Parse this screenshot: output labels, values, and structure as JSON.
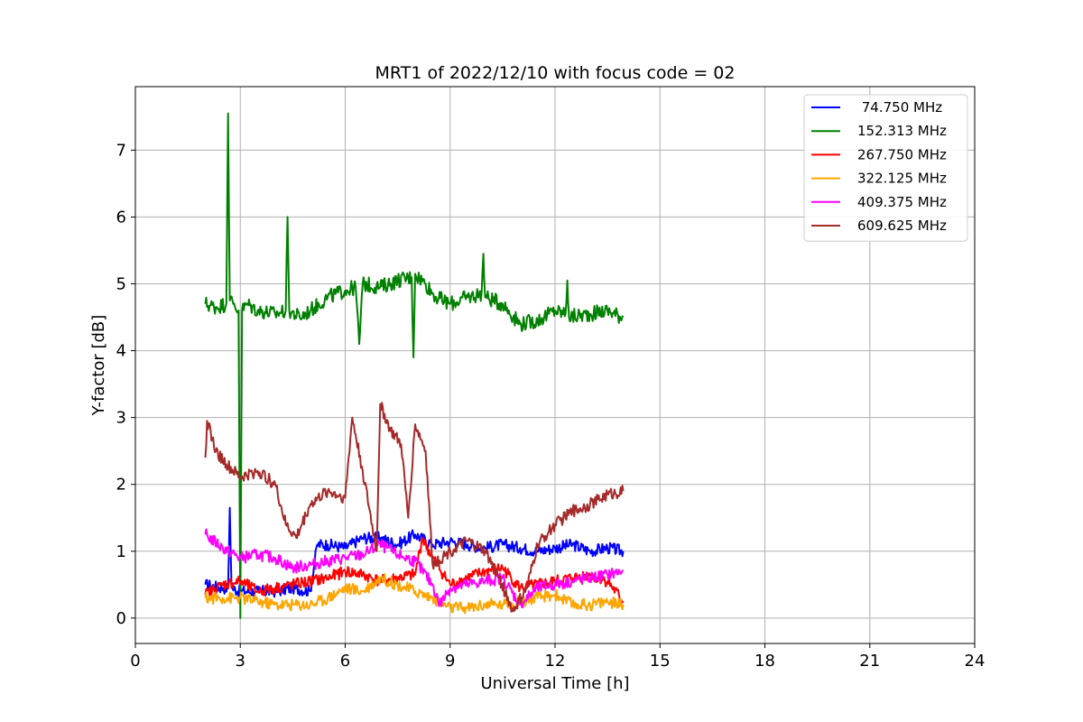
{
  "chart_data": {
    "type": "line",
    "title": "MRT1 of 2022/12/10 with focus code = 02",
    "xlabel": "Universal Time [h]",
    "ylabel": "Y-factor [dB]",
    "xlim": [
      0,
      24
    ],
    "ylim": [
      -0.38,
      7.95
    ],
    "xticks": [
      0,
      3,
      6,
      9,
      12,
      15,
      18,
      21,
      24
    ],
    "yticks": [
      0,
      1,
      2,
      3,
      4,
      5,
      6,
      7
    ],
    "grid": true,
    "legend_position": "top-right",
    "series": [
      {
        "name": "74.750 MHz",
        "legend_label": " 74.750 MHz",
        "color": "#0000ff",
        "x": [
          2.0,
          2.5,
          2.65,
          2.7,
          2.75,
          3.0,
          3.5,
          4.0,
          4.5,
          5.0,
          5.2,
          5.5,
          6.0,
          6.5,
          7.0,
          7.5,
          8.0,
          8.5,
          9.0,
          9.5,
          10.0,
          10.5,
          11.0,
          11.5,
          12.0,
          12.5,
          13.0,
          13.5,
          13.95
        ],
        "y": [
          0.5,
          0.45,
          0.45,
          1.65,
          0.45,
          0.4,
          0.4,
          0.4,
          0.45,
          0.4,
          1.1,
          1.1,
          1.05,
          1.2,
          1.2,
          1.1,
          1.25,
          1.1,
          1.15,
          1.1,
          1.05,
          1.1,
          1.05,
          1.0,
          1.05,
          1.1,
          1.0,
          1.05,
          1.0
        ]
      },
      {
        "name": "152.313 MHz",
        "color": "#008000",
        "x": [
          2.0,
          2.3,
          2.6,
          2.65,
          2.7,
          2.8,
          2.95,
          3.0,
          3.05,
          3.2,
          3.5,
          4.0,
          4.3,
          4.35,
          4.4,
          4.7,
          5.0,
          5.5,
          6.0,
          6.3,
          6.4,
          6.5,
          7.0,
          7.5,
          7.9,
          7.95,
          8.0,
          8.3,
          8.6,
          9.0,
          9.5,
          9.9,
          9.95,
          10.0,
          10.5,
          11.0,
          11.5,
          12.0,
          12.3,
          12.35,
          12.4,
          13.0,
          13.5,
          13.95
        ],
        "y": [
          4.7,
          4.65,
          4.7,
          7.55,
          4.75,
          4.7,
          4.6,
          0.0,
          4.6,
          4.7,
          4.6,
          4.55,
          4.6,
          6.0,
          4.6,
          4.5,
          4.6,
          4.8,
          4.9,
          4.95,
          4.1,
          5.0,
          4.95,
          5.05,
          5.1,
          3.9,
          5.15,
          5.0,
          4.8,
          4.7,
          4.8,
          4.85,
          5.45,
          4.8,
          4.7,
          4.4,
          4.45,
          4.6,
          4.55,
          5.05,
          4.5,
          4.55,
          4.6,
          4.5
        ]
      },
      {
        "name": "267.750 MHz",
        "color": "#ff0000",
        "x": [
          2.0,
          2.5,
          3.0,
          3.5,
          4.0,
          4.5,
          5.0,
          5.5,
          6.0,
          6.5,
          7.0,
          7.5,
          8.0,
          8.2,
          8.5,
          9.0,
          9.5,
          10.0,
          10.5,
          11.0,
          11.5,
          12.0,
          12.5,
          13.0,
          13.5,
          13.95
        ],
        "y": [
          0.35,
          0.5,
          0.55,
          0.4,
          0.45,
          0.5,
          0.55,
          0.6,
          0.7,
          0.65,
          0.55,
          0.6,
          0.65,
          1.2,
          0.9,
          0.5,
          0.6,
          0.7,
          0.75,
          0.45,
          0.5,
          0.55,
          0.6,
          0.65,
          0.55,
          0.25
        ]
      },
      {
        "name": "322.125 MHz",
        "color": "#ffa500",
        "x": [
          2.0,
          2.5,
          3.0,
          3.5,
          4.0,
          4.5,
          5.0,
          5.5,
          6.0,
          6.5,
          7.0,
          7.5,
          8.0,
          8.5,
          9.0,
          9.5,
          10.0,
          10.5,
          11.0,
          11.5,
          12.0,
          12.5,
          13.0,
          13.5,
          13.95
        ],
        "y": [
          0.3,
          0.3,
          0.3,
          0.25,
          0.2,
          0.2,
          0.2,
          0.3,
          0.45,
          0.4,
          0.6,
          0.5,
          0.4,
          0.3,
          0.15,
          0.15,
          0.2,
          0.2,
          0.25,
          0.3,
          0.35,
          0.2,
          0.2,
          0.25,
          0.2
        ]
      },
      {
        "name": "409.375 MHz",
        "color": "#ff00ff",
        "x": [
          2.0,
          2.5,
          3.0,
          3.5,
          4.0,
          4.5,
          5.0,
          5.5,
          6.0,
          6.5,
          7.0,
          7.5,
          8.0,
          8.5,
          8.7,
          9.0,
          9.5,
          10.0,
          10.5,
          11.0,
          11.5,
          12.0,
          12.5,
          13.0,
          13.5,
          13.95
        ],
        "y": [
          1.25,
          1.05,
          0.9,
          0.95,
          0.9,
          0.75,
          0.8,
          0.85,
          0.9,
          0.95,
          1.1,
          0.95,
          0.85,
          0.5,
          0.2,
          0.45,
          0.5,
          0.55,
          0.6,
          0.2,
          0.45,
          0.5,
          0.55,
          0.6,
          0.65,
          0.7
        ]
      },
      {
        "name": "609.625 MHz",
        "color": "#a52a2a",
        "x": [
          2.0,
          2.05,
          2.3,
          2.6,
          3.0,
          3.5,
          4.0,
          4.3,
          4.6,
          5.0,
          5.5,
          6.0,
          6.2,
          6.5,
          6.9,
          7.0,
          7.3,
          7.6,
          7.8,
          8.0,
          8.3,
          8.5,
          9.0,
          9.5,
          10.0,
          10.4,
          10.8,
          11.2,
          11.5,
          12.0,
          12.5,
          13.0,
          13.5,
          13.95
        ],
        "y": [
          2.4,
          2.95,
          2.5,
          2.3,
          2.1,
          2.2,
          2.0,
          1.4,
          1.2,
          1.7,
          1.9,
          1.8,
          3.0,
          2.2,
          1.0,
          3.2,
          2.8,
          2.6,
          1.5,
          2.9,
          2.5,
          0.8,
          1.0,
          1.15,
          1.0,
          0.6,
          0.1,
          0.45,
          1.1,
          1.4,
          1.6,
          1.7,
          1.85,
          1.9
        ]
      }
    ]
  }
}
